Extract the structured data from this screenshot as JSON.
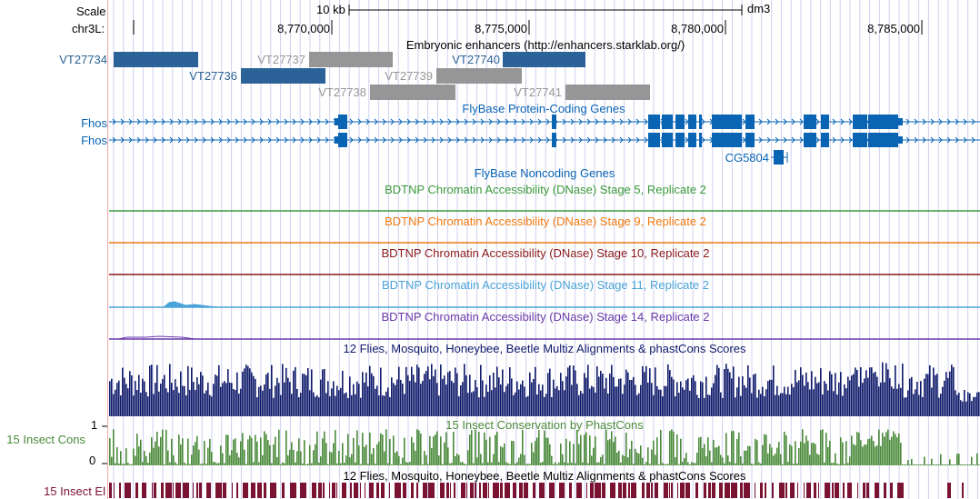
{
  "assembly": "dm3",
  "scale_label": "Scale",
  "scale_bar_text": "10 kb",
  "chrom_label": "chr3L:",
  "ruler_ticks": [
    "8,770,000",
    "8,775,000",
    "8,780,000",
    "8,785,000"
  ],
  "colors": {
    "vt_blue": "#2b6298",
    "vt_gray": "#969696",
    "gene_blue": "#0a64b4",
    "stage5": "#3a9a3a",
    "stage9": "#f07a10",
    "stage10": "#8b1a1a",
    "stage11": "#4aa3d8",
    "stage14": "#6a3aa8",
    "multiz": "#0f1a6a",
    "phastcons": "#4a8a3a",
    "elements": "#7a1232",
    "grid": "#d0d0f0",
    "divider": "#f4a6a6"
  },
  "tracks": {
    "enhancers": {
      "title": "Embryonic enhancers (http://enhancers.starklab.org/)",
      "items": [
        {
          "name": "VT27734",
          "state": "blue"
        },
        {
          "name": "VT27736",
          "state": "blue"
        },
        {
          "name": "VT27737",
          "state": "gray"
        },
        {
          "name": "VT27738",
          "state": "gray"
        },
        {
          "name": "VT27739",
          "state": "gray"
        },
        {
          "name": "VT27740",
          "state": "blue"
        },
        {
          "name": "VT27741",
          "state": "gray"
        }
      ]
    },
    "genes": {
      "title": "FlyBase Protein-Coding Genes",
      "transcripts": [
        {
          "name": "Fhos",
          "label": "Fhos"
        },
        {
          "name": "Fhos",
          "label": "Fhos"
        }
      ],
      "cg": {
        "name": "CG5804"
      }
    },
    "noncoding": {
      "title": "FlyBase Noncoding Genes"
    },
    "dnase": [
      {
        "title": "BDTNP Chromatin Accessibility (DNase) Stage 5, Replicate 2",
        "color_key": "stage5"
      },
      {
        "title": "BDTNP Chromatin Accessibility (DNase) Stage 9, Replicate 2",
        "color_key": "stage9"
      },
      {
        "title": "BDTNP Chromatin Accessibility (DNase) Stage 10, Replicate 2",
        "color_key": "stage10"
      },
      {
        "title": "BDTNP Chromatin Accessibility (DNase) Stage 11, Replicate 2",
        "color_key": "stage11"
      },
      {
        "title": "BDTNP Chromatin Accessibility (DNase) Stage 14, Replicate 2",
        "color_key": "stage14"
      }
    ],
    "multiz": {
      "title": "12 Flies, Mosquito, Honeybee, Beetle Multiz Alignments & phastCons Scores"
    },
    "phastcons": {
      "title": "15 Insect Conservation by PhastCons",
      "side_label": "15 Insect Cons",
      "axis_max": "1",
      "axis_min": "0"
    },
    "elements": {
      "title": "12 Flies, Mosquito, Honeybee, Beetle Multiz Alignments & phastCons Scores",
      "side_label": "15 Insect El"
    }
  }
}
